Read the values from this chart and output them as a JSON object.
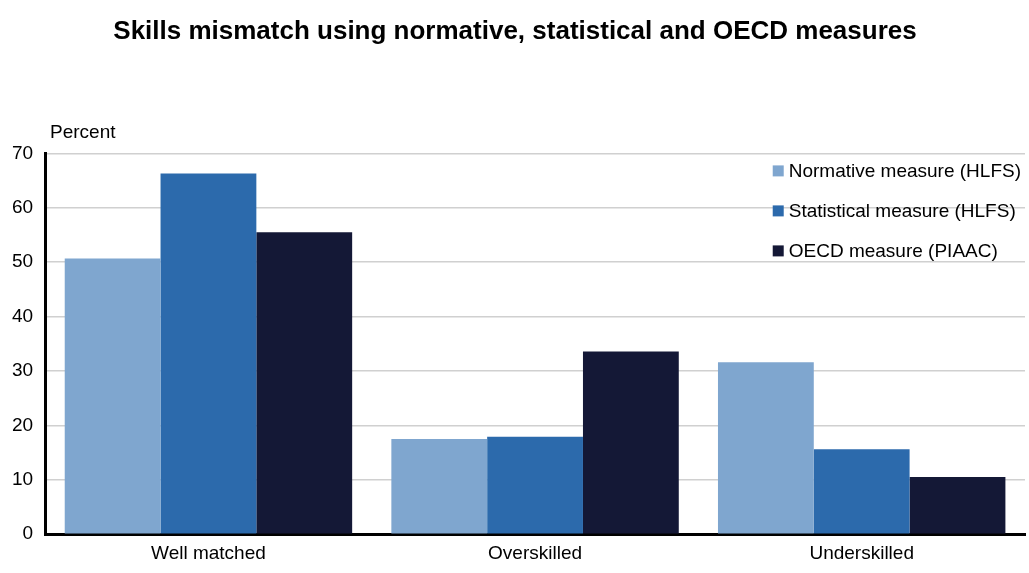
{
  "chart_data": {
    "type": "bar",
    "title": "Skills mismatch using normative, statistical and OECD measures",
    "ylabel": "Percent",
    "categories": [
      "Well matched",
      "Overskilled",
      "Underskilled"
    ],
    "series": [
      {
        "name": "Normative measure (HLFS)",
        "color": "#7fa6cf",
        "values": [
          50.7,
          17.5,
          31.6
        ]
      },
      {
        "name": "Statistical measure (HLFS)",
        "color": "#2c6aac",
        "values": [
          66.3,
          17.9,
          15.6
        ]
      },
      {
        "name": "OECD measure (PIAAC)",
        "color": "#141836",
        "values": [
          55.5,
          33.6,
          10.5
        ]
      }
    ],
    "ylim": [
      0,
      70
    ],
    "yticks": [
      0,
      10,
      20,
      30,
      40,
      50,
      60,
      70
    ],
    "grid": "y",
    "legend": "top right"
  }
}
